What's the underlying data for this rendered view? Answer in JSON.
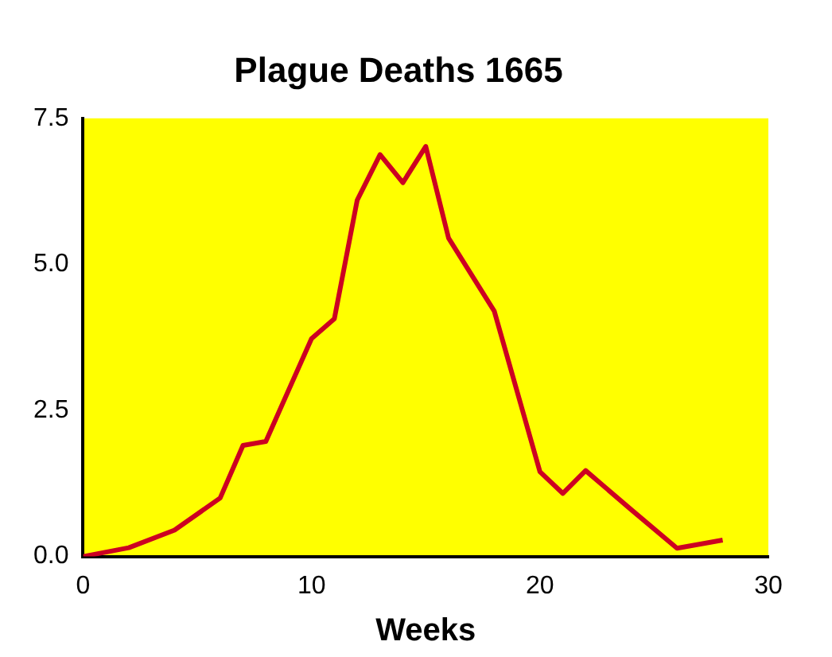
{
  "chart_data": {
    "type": "line",
    "title": "Plague Deaths 1665",
    "xlabel": "Weeks",
    "x": [
      0,
      2,
      4,
      6,
      7,
      8,
      10,
      11,
      12,
      13,
      14,
      15,
      16,
      18,
      20,
      21,
      22,
      24,
      26,
      28
    ],
    "series": [
      {
        "color": "#cc0022",
        "values": [
          0,
          0.15,
          0.45,
          1.0,
          1.9,
          1.97,
          3.73,
          4.07,
          6.1,
          6.88,
          6.4,
          7.02,
          5.45,
          4.2,
          1.45,
          1.08,
          1.47,
          0.8,
          0.14,
          0.28
        ]
      }
    ],
    "xlim": [
      0,
      30
    ],
    "xticks": [
      0,
      10,
      20,
      30
    ],
    "ylim": [
      0,
      7.5
    ],
    "yticks": [
      {
        "value": 0,
        "label": "0.0"
      },
      {
        "value": 2.5,
        "label": "2.5"
      },
      {
        "value": 5,
        "label": "5.0"
      },
      {
        "value": 7.5,
        "label": "7.5"
      }
    ],
    "grid": false,
    "legend": false,
    "marker": "none",
    "line_style": "solid"
  }
}
